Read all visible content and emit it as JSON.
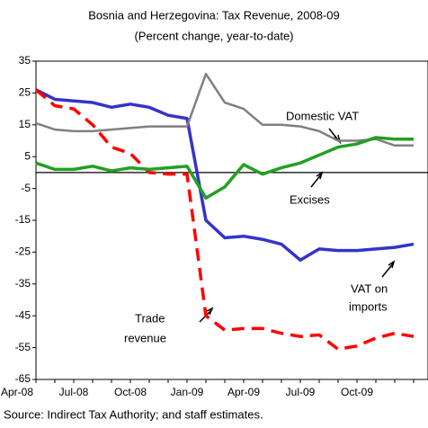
{
  "chart_data": {
    "type": "line",
    "title": "Bosnia and Herzegovina: Tax Revenue, 2008-09",
    "subtitle": "(Percent change, year-to-date)",
    "source": "Source: Indirect Tax Authority; and staff estimates.",
    "annotations": [
      "Domestic VAT",
      "Excises",
      "VAT on",
      "imports",
      "Trade",
      "revenue"
    ],
    "categories": [
      "Apr-08",
      null,
      null,
      "Jul-08",
      null,
      null,
      "Oct-08",
      null,
      null,
      "Jan-09",
      null,
      null,
      "Apr-09",
      null,
      null,
      "Jul-09",
      null,
      null,
      "Oct-09",
      null,
      null
    ],
    "series": [
      {
        "name": "VAT on imports",
        "color": "#3333cc",
        "values": [
          26,
          23,
          22.5,
          22,
          20.5,
          21.5,
          20.5,
          18,
          17,
          -15,
          -20.5,
          -20,
          -21,
          -22.5,
          -27.5,
          -24,
          -24.5,
          -24.5,
          -24,
          -23.5,
          -22.5
        ]
      },
      {
        "name": "Trade revenue",
        "color": "#ff0000",
        "dash": true,
        "values": [
          26,
          21,
          20,
          15,
          8,
          6,
          0,
          -0.5,
          -0.5,
          -45,
          -49.5,
          -49,
          -49,
          -50.5,
          -51.5,
          -51,
          -55.5,
          -54.5,
          -52,
          -50.5,
          -51.5
        ]
      },
      {
        "name": "Domestic VAT",
        "color": "#808080",
        "values": [
          15.5,
          13.5,
          13,
          13,
          13.5,
          14,
          14.5,
          14.5,
          14.5,
          31,
          22,
          20,
          15,
          15,
          14.5,
          13,
          10,
          10,
          10.5,
          8.5,
          8.5
        ]
      },
      {
        "name": "Excises",
        "color": "#22a022",
        "values": [
          3,
          1,
          1,
          2,
          0.5,
          1.5,
          1,
          1.5,
          2,
          -8,
          -4.5,
          2.5,
          -0.5,
          1.5,
          3,
          5.5,
          8,
          9,
          11,
          10.5,
          10.5
        ]
      }
    ],
    "ylim": [
      -65,
      35
    ],
    "yticks": [
      35,
      25,
      15,
      5,
      -5,
      -15,
      -25,
      -35,
      -45,
      -55,
      -65
    ]
  }
}
